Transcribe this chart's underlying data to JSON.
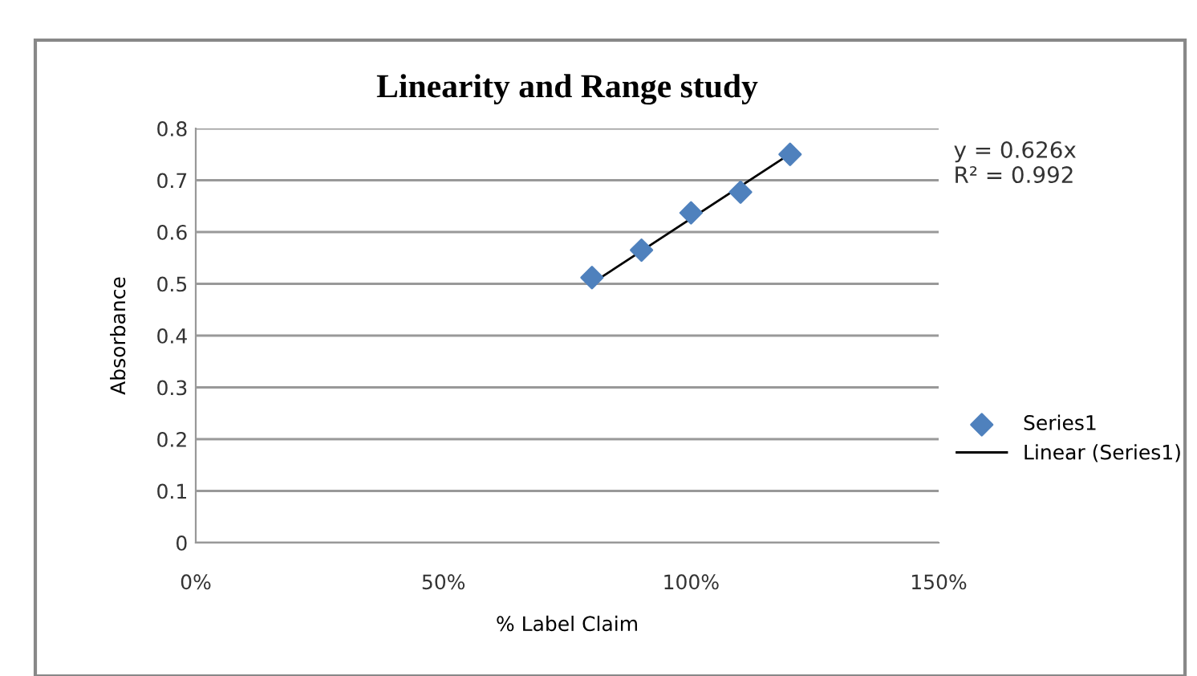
{
  "chart_data": {
    "type": "scatter",
    "title": "Linearity and Range study",
    "xlabel": "% Label Claim",
    "ylabel": "Absorbance",
    "x": [
      80,
      90,
      100,
      110,
      120
    ],
    "series": [
      {
        "name": "Series1",
        "color": "#4f81bd",
        "marker": "diamond",
        "values": [
          0.512,
          0.565,
          0.637,
          0.677,
          0.75
        ]
      },
      {
        "name": "Linear (Series1)",
        "type": "line",
        "color": "#000000",
        "marker": "none",
        "line_style": "solid",
        "x": [
          80,
          120
        ],
        "values": [
          0.501,
          0.751
        ]
      }
    ],
    "annotations": [
      "y = 0.626x\nR² = 0.992"
    ],
    "xlim": [
      0,
      150
    ],
    "xticks": [
      {
        "value": 0,
        "label": "0%"
      },
      {
        "value": 50,
        "label": "50%"
      },
      {
        "value": 100,
        "label": "100%"
      },
      {
        "value": 150,
        "label": "150%"
      }
    ],
    "ylim": [
      0,
      0.8
    ],
    "yticks": [
      0,
      0.1,
      0.2,
      0.3,
      0.4,
      0.5,
      0.6,
      0.7,
      0.8
    ],
    "grid": "y",
    "legend": "right"
  }
}
